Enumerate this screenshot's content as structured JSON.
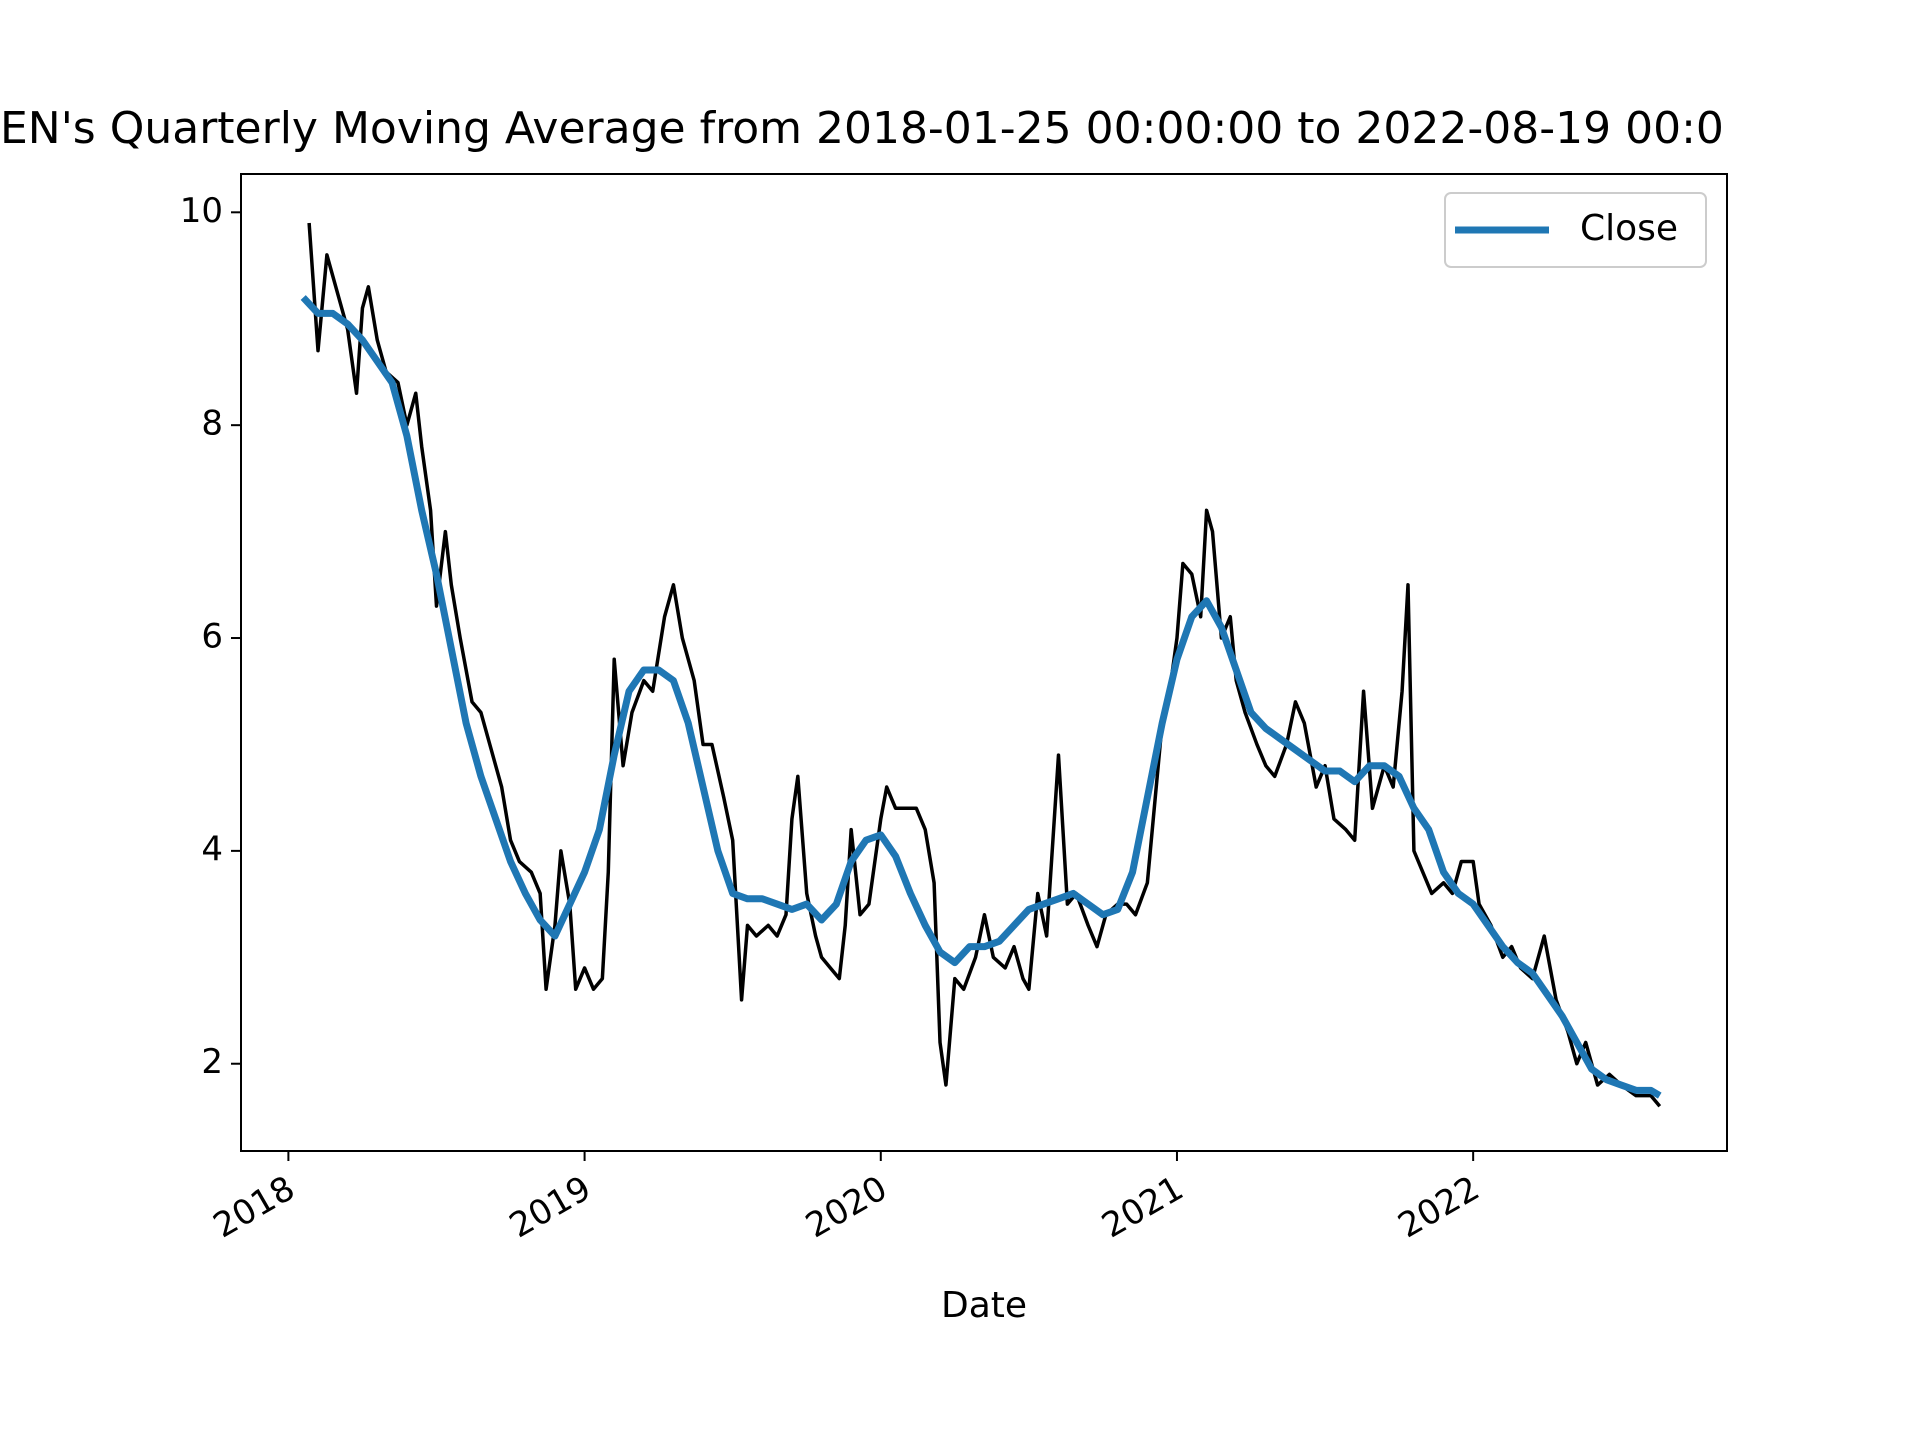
{
  "chart_data": {
    "type": "line",
    "title": "EN's Quarterly Moving Average from 2018-01-25 00:00:00 to 2022-08-19 00:0",
    "xlabel": "Date",
    "legend": "upper right",
    "xlim": [
      2017.84,
      2022.857
    ],
    "xticks": [
      2018,
      2019,
      2020,
      2021,
      2022
    ],
    "ylim": [
      1.18,
      10.36
    ],
    "yticks": [
      2,
      4,
      6,
      8,
      10
    ],
    "series": [
      {
        "color": "#000000",
        "width": 3.5,
        "x": [
          2018.07,
          2018.1,
          2018.13,
          2018.17,
          2018.2,
          2018.23,
          2018.25,
          2018.27,
          2018.3,
          2018.33,
          2018.37,
          2018.4,
          2018.43,
          2018.45,
          2018.48,
          2018.5,
          2018.53,
          2018.55,
          2018.58,
          2018.62,
          2018.65,
          2018.68,
          2018.72,
          2018.75,
          2018.78,
          2018.82,
          2018.85,
          2018.87,
          2018.9,
          2018.92,
          2018.95,
          2018.97,
          2019.0,
          2019.03,
          2019.06,
          2019.08,
          2019.1,
          2019.13,
          2019.16,
          2019.2,
          2019.23,
          2019.27,
          2019.3,
          2019.33,
          2019.37,
          2019.4,
          2019.43,
          2019.47,
          2019.5,
          2019.53,
          2019.55,
          2019.58,
          2019.62,
          2019.65,
          2019.68,
          2019.7,
          2019.72,
          2019.75,
          2019.78,
          2019.8,
          2019.83,
          2019.86,
          2019.88,
          2019.9,
          2019.93,
          2019.96,
          2020.0,
          2020.02,
          2020.05,
          2020.08,
          2020.12,
          2020.15,
          2020.18,
          2020.2,
          2020.22,
          2020.25,
          2020.28,
          2020.32,
          2020.35,
          2020.38,
          2020.42,
          2020.45,
          2020.48,
          2020.5,
          2020.53,
          2020.56,
          2020.6,
          2020.63,
          2020.66,
          2020.7,
          2020.73,
          2020.76,
          2020.8,
          2020.83,
          2020.86,
          2020.9,
          2020.92,
          2020.95,
          2020.98,
          2021.0,
          2021.02,
          2021.05,
          2021.08,
          2021.1,
          2021.12,
          2021.15,
          2021.18,
          2021.2,
          2021.23,
          2021.27,
          2021.3,
          2021.33,
          2021.37,
          2021.4,
          2021.43,
          2021.47,
          2021.5,
          2021.53,
          2021.57,
          2021.6,
          2021.63,
          2021.66,
          2021.7,
          2021.73,
          2021.76,
          2021.78,
          2021.8,
          2021.83,
          2021.86,
          2021.9,
          2021.93,
          2021.96,
          2022.0,
          2022.02,
          2022.06,
          2022.1,
          2022.13,
          2022.16,
          2022.2,
          2022.24,
          2022.28,
          2022.32,
          2022.35,
          2022.38,
          2022.42,
          2022.46,
          2022.5,
          2022.55,
          2022.6,
          2022.63
        ],
        "values": [
          9.9,
          8.7,
          9.6,
          9.2,
          8.9,
          8.3,
          9.1,
          9.3,
          8.8,
          8.5,
          8.4,
          8.0,
          8.3,
          7.8,
          7.2,
          6.3,
          7.0,
          6.5,
          6.0,
          5.4,
          5.3,
          5.0,
          4.6,
          4.1,
          3.9,
          3.8,
          3.6,
          2.7,
          3.3,
          4.0,
          3.5,
          2.7,
          2.9,
          2.7,
          2.8,
          3.8,
          5.8,
          4.8,
          5.3,
          5.6,
          5.5,
          6.2,
          6.5,
          6.0,
          5.6,
          5.0,
          5.0,
          4.5,
          4.1,
          2.6,
          3.3,
          3.2,
          3.3,
          3.2,
          3.4,
          4.3,
          4.7,
          3.6,
          3.2,
          3.0,
          2.9,
          2.8,
          3.3,
          4.2,
          3.4,
          3.5,
          4.3,
          4.6,
          4.4,
          4.4,
          4.4,
          4.2,
          3.7,
          2.2,
          1.8,
          2.8,
          2.7,
          3.0,
          3.4,
          3.0,
          2.9,
          3.1,
          2.8,
          2.7,
          3.6,
          3.2,
          4.9,
          3.5,
          3.6,
          3.3,
          3.1,
          3.4,
          3.5,
          3.5,
          3.4,
          3.7,
          4.3,
          5.2,
          5.6,
          6.0,
          6.7,
          6.6,
          6.2,
          7.2,
          7.0,
          6.0,
          6.2,
          5.6,
          5.3,
          5.0,
          4.8,
          4.7,
          5.0,
          5.4,
          5.2,
          4.6,
          4.8,
          4.3,
          4.2,
          4.1,
          5.5,
          4.4,
          4.8,
          4.6,
          5.5,
          6.5,
          4.0,
          3.8,
          3.6,
          3.7,
          3.6,
          3.9,
          3.9,
          3.5,
          3.3,
          3.0,
          3.1,
          2.9,
          2.8,
          3.2,
          2.6,
          2.3,
          2.0,
          2.2,
          1.8,
          1.9,
          1.8,
          1.7,
          1.7,
          1.6
        ]
      },
      {
        "name": "Close",
        "color": "#1f77b4",
        "width": 7,
        "x": [
          2018.05,
          2018.1,
          2018.15,
          2018.2,
          2018.25,
          2018.3,
          2018.35,
          2018.4,
          2018.45,
          2018.5,
          2018.55,
          2018.6,
          2018.65,
          2018.7,
          2018.75,
          2018.8,
          2018.85,
          2018.9,
          2018.95,
          2019.0,
          2019.05,
          2019.1,
          2019.15,
          2019.2,
          2019.25,
          2019.3,
          2019.35,
          2019.4,
          2019.45,
          2019.5,
          2019.55,
          2019.6,
          2019.65,
          2019.7,
          2019.75,
          2019.8,
          2019.85,
          2019.9,
          2019.95,
          2020.0,
          2020.05,
          2020.1,
          2020.15,
          2020.2,
          2020.25,
          2020.3,
          2020.35,
          2020.4,
          2020.45,
          2020.5,
          2020.55,
          2020.6,
          2020.65,
          2020.7,
          2020.75,
          2020.8,
          2020.85,
          2020.9,
          2020.95,
          2021.0,
          2021.05,
          2021.1,
          2021.15,
          2021.2,
          2021.25,
          2021.3,
          2021.35,
          2021.4,
          2021.45,
          2021.5,
          2021.55,
          2021.6,
          2021.65,
          2021.7,
          2021.75,
          2021.8,
          2021.85,
          2021.9,
          2021.95,
          2022.0,
          2022.05,
          2022.1,
          2022.15,
          2022.2,
          2022.25,
          2022.3,
          2022.35,
          2022.4,
          2022.45,
          2022.5,
          2022.55,
          2022.6,
          2022.63
        ],
        "values": [
          9.2,
          9.05,
          9.05,
          8.95,
          8.8,
          8.6,
          8.4,
          7.9,
          7.2,
          6.6,
          5.9,
          5.2,
          4.7,
          4.3,
          3.9,
          3.6,
          3.35,
          3.2,
          3.5,
          3.8,
          4.2,
          4.9,
          5.5,
          5.7,
          5.7,
          5.6,
          5.2,
          4.6,
          4.0,
          3.6,
          3.55,
          3.55,
          3.5,
          3.45,
          3.5,
          3.35,
          3.5,
          3.9,
          4.1,
          4.15,
          3.95,
          3.6,
          3.3,
          3.05,
          2.95,
          3.1,
          3.1,
          3.15,
          3.3,
          3.45,
          3.5,
          3.55,
          3.6,
          3.5,
          3.4,
          3.45,
          3.8,
          4.5,
          5.2,
          5.8,
          6.2,
          6.35,
          6.1,
          5.7,
          5.3,
          5.15,
          5.05,
          4.95,
          4.85,
          4.75,
          4.75,
          4.65,
          4.8,
          4.8,
          4.7,
          4.4,
          4.2,
          3.8,
          3.6,
          3.5,
          3.3,
          3.1,
          2.95,
          2.85,
          2.65,
          2.45,
          2.2,
          1.95,
          1.85,
          1.8,
          1.75,
          1.75,
          1.7
        ]
      }
    ]
  }
}
